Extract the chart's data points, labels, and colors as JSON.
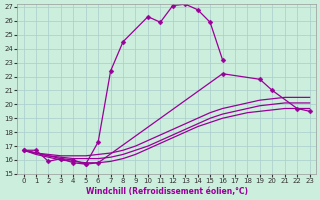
{
  "xlabel": "Windchill (Refroidissement éolien,°C)",
  "bg_color": "#cceedd",
  "grid_color": "#aacccc",
  "line_color": "#990099",
  "xlim": [
    -0.5,
    23.5
  ],
  "ylim": [
    15,
    27.2
  ],
  "yticks": [
    15,
    16,
    17,
    18,
    19,
    20,
    21,
    22,
    23,
    24,
    25,
    26,
    27
  ],
  "xticks": [
    0,
    1,
    2,
    3,
    4,
    5,
    6,
    7,
    8,
    9,
    10,
    11,
    12,
    13,
    14,
    15,
    16,
    17,
    18,
    19,
    20,
    21,
    22,
    23
  ],
  "line1_x": [
    0,
    1,
    2,
    3,
    4,
    5,
    6,
    7,
    8,
    10,
    11,
    12,
    13,
    14,
    15,
    16
  ],
  "line1_y": [
    16.7,
    16.7,
    15.9,
    16.1,
    16.0,
    15.7,
    17.3,
    22.4,
    24.5,
    26.3,
    25.9,
    27.1,
    27.2,
    26.8,
    25.9,
    23.2
  ],
  "line2_x": [
    0,
    3,
    4,
    5,
    6,
    16,
    19,
    20,
    22,
    23
  ],
  "line2_y": [
    16.7,
    16.1,
    15.8,
    15.7,
    15.8,
    22.2,
    21.8,
    21.0,
    19.7,
    19.5
  ],
  "curve_a_x": [
    0,
    1,
    2,
    3,
    4,
    5,
    6,
    7,
    8,
    9,
    10,
    11,
    12,
    13,
    14,
    15,
    16,
    17,
    18,
    19,
    20,
    21,
    22,
    23
  ],
  "curve_a_y": [
    16.7,
    16.5,
    16.4,
    16.3,
    16.3,
    16.3,
    16.4,
    16.5,
    16.7,
    17.0,
    17.4,
    17.8,
    18.2,
    18.6,
    19.0,
    19.4,
    19.7,
    19.9,
    20.1,
    20.3,
    20.4,
    20.5,
    20.5,
    20.5
  ],
  "curve_b_x": [
    0,
    1,
    2,
    3,
    4,
    5,
    6,
    7,
    8,
    9,
    10,
    11,
    12,
    13,
    14,
    15,
    16,
    17,
    18,
    19,
    20,
    21,
    22,
    23
  ],
  "curve_b_y": [
    16.7,
    16.5,
    16.3,
    16.2,
    16.1,
    16.1,
    16.1,
    16.2,
    16.4,
    16.7,
    17.0,
    17.4,
    17.8,
    18.2,
    18.6,
    19.0,
    19.3,
    19.5,
    19.7,
    19.9,
    20.0,
    20.1,
    20.1,
    20.1
  ],
  "curve_c_x": [
    0,
    1,
    2,
    3,
    4,
    5,
    6,
    7,
    8,
    9,
    10,
    11,
    12,
    13,
    14,
    15,
    16,
    17,
    18,
    19,
    20,
    21,
    22,
    23
  ],
  "curve_c_y": [
    16.7,
    16.4,
    16.2,
    16.0,
    15.9,
    15.8,
    15.8,
    15.9,
    16.1,
    16.4,
    16.8,
    17.2,
    17.6,
    18.0,
    18.4,
    18.7,
    19.0,
    19.2,
    19.4,
    19.5,
    19.6,
    19.7,
    19.7,
    19.7
  ]
}
